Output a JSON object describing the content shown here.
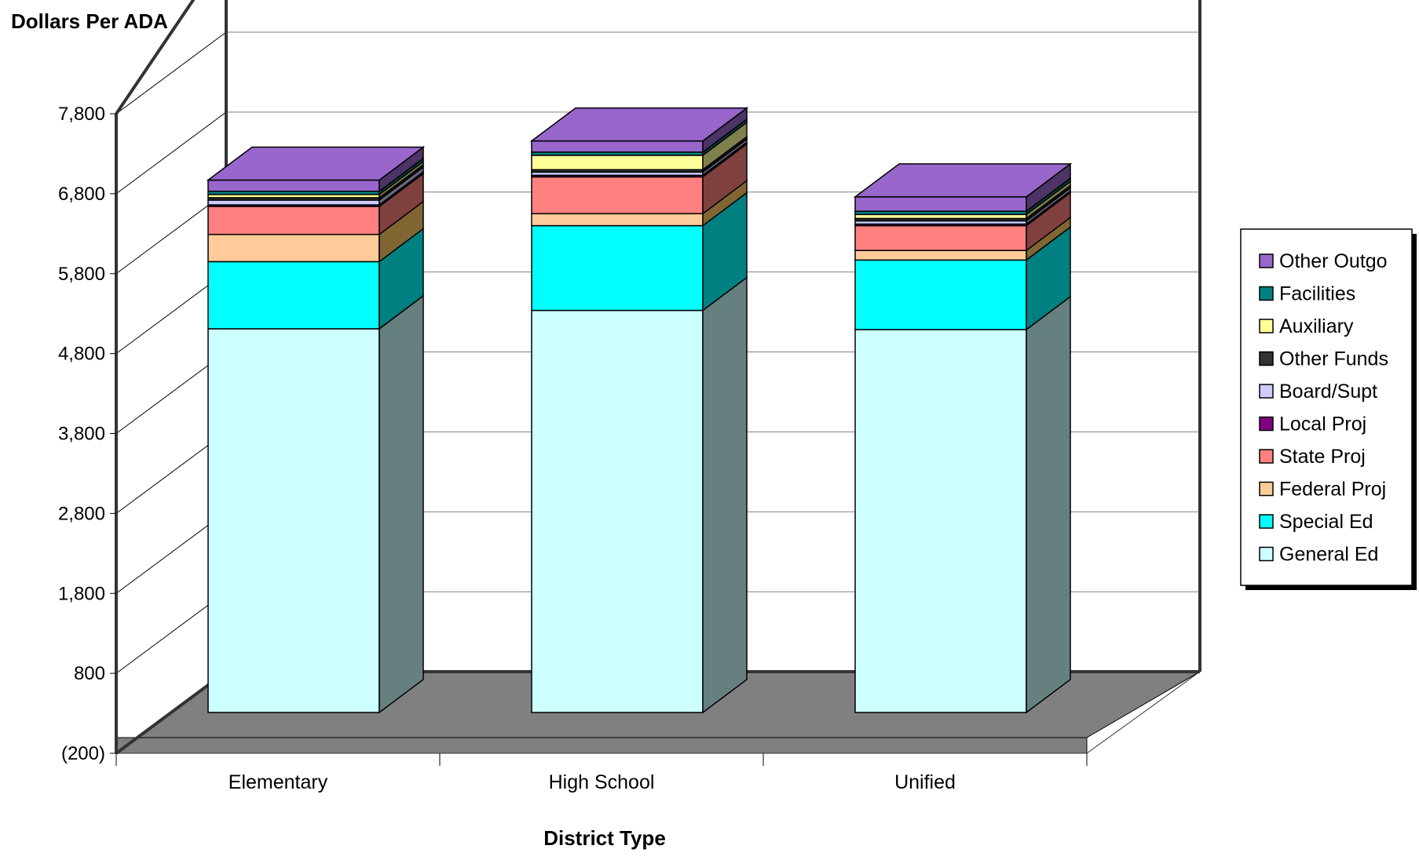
{
  "chart_data": {
    "type": "bar",
    "stacked": true,
    "three_d": true,
    "ylabel": "Dollars Per ADA",
    "xlabel": "District Type",
    "ylim": [
      -200,
      7800
    ],
    "yticks": [
      "(200)",
      "800",
      "1,800",
      "2,800",
      "3,800",
      "4,800",
      "5,800",
      "6,800",
      "7,800"
    ],
    "ytick_values": [
      -200,
      800,
      1800,
      2800,
      3800,
      4800,
      5800,
      6800,
      7800
    ],
    "grid": true,
    "legend_position": "right",
    "categories": [
      "Elementary",
      "High School",
      "Unified"
    ],
    "series": [
      {
        "name": "General Ed",
        "values": [
          4800,
          5030,
          4790
        ],
        "color": "#CCFFFF",
        "side": "#668080",
        "top": "#E6FFFF"
      },
      {
        "name": "Special Ed",
        "values": [
          840,
          1060,
          870
        ],
        "color": "#00FFFF",
        "side": "#008080",
        "top": "#80FFFF"
      },
      {
        "name": "Federal Proj",
        "values": [
          340,
          150,
          120
        ],
        "color": "#FFCC99",
        "side": "#806633",
        "top": "#FFE6CC"
      },
      {
        "name": "State Proj",
        "values": [
          350,
          460,
          310
        ],
        "color": "#FF8080",
        "side": "#804040",
        "top": "#FFC0C0"
      },
      {
        "name": "Local Proj",
        "values": [
          20,
          20,
          20
        ],
        "color": "#800080",
        "side": "#400040",
        "top": "#A040A0"
      },
      {
        "name": "Board/Supt",
        "values": [
          60,
          40,
          40
        ],
        "color": "#CCCCFF",
        "side": "#666680",
        "top": "#E6E6FF"
      },
      {
        "name": "Other Funds",
        "values": [
          30,
          30,
          30
        ],
        "color": "#333333",
        "side": "#1A1A1A",
        "top": "#666666"
      },
      {
        "name": "Auxiliary",
        "values": [
          40,
          180,
          50
        ],
        "color": "#FFFF99",
        "side": "#80804D",
        "top": "#FFFFCC"
      },
      {
        "name": "Facilities",
        "values": [
          40,
          40,
          40
        ],
        "color": "#008080",
        "side": "#004040",
        "top": "#40A0A0"
      },
      {
        "name": "Other Outgo",
        "values": [
          140,
          140,
          180
        ],
        "color": "#9966CC",
        "side": "#4D3366",
        "top": "#9966CC"
      }
    ]
  }
}
